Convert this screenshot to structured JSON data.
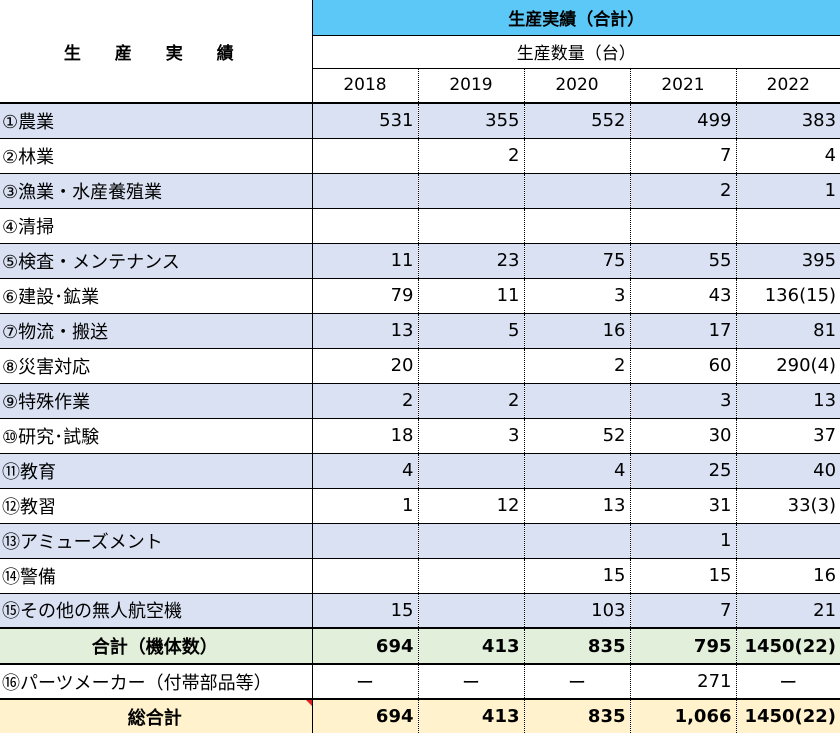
{
  "header": {
    "row_label": "生 産 実 績",
    "band_title": "生産実績（合計）",
    "sub_title": "生産数量（台）",
    "years": [
      "2018",
      "2019",
      "2020",
      "2021",
      "2022"
    ]
  },
  "rows": [
    {
      "label": "①農業",
      "values": [
        "531",
        "355",
        "552",
        "499",
        "383"
      ]
    },
    {
      "label": "②林業",
      "values": [
        "",
        "2",
        "",
        "7",
        "4"
      ]
    },
    {
      "label": "③漁業・水産養殖業",
      "values": [
        "",
        "",
        "",
        "2",
        "1"
      ]
    },
    {
      "label": "④清掃",
      "values": [
        "",
        "",
        "",
        "",
        ""
      ]
    },
    {
      "label": "⑤検査・メンテナンス",
      "values": [
        "11",
        "23",
        "75",
        "55",
        "395"
      ]
    },
    {
      "label": "⑥建設･鉱業",
      "values": [
        "79",
        "11",
        "3",
        "43",
        "136(15)"
      ]
    },
    {
      "label": "⑦物流・搬送",
      "values": [
        "13",
        "5",
        "16",
        "17",
        "81"
      ]
    },
    {
      "label": "⑧災害対応",
      "values": [
        "20",
        "",
        "2",
        "60",
        "290(4)"
      ]
    },
    {
      "label": "⑨特殊作業",
      "values": [
        "2",
        "2",
        "",
        "3",
        "13"
      ]
    },
    {
      "label": "⑩研究･試験",
      "values": [
        "18",
        "3",
        "52",
        "30",
        "37"
      ]
    },
    {
      "label": "⑪教育",
      "values": [
        "4",
        "",
        "4",
        "25",
        "40"
      ]
    },
    {
      "label": "⑫教習",
      "values": [
        "1",
        "12",
        "13",
        "31",
        "33(3)"
      ]
    },
    {
      "label": "⑬アミューズメント",
      "values": [
        "",
        "",
        "",
        "1",
        ""
      ]
    },
    {
      "label": "⑭警備",
      "values": [
        "",
        "",
        "15",
        "15",
        "16"
      ]
    },
    {
      "label": "⑮その他の無人航空機",
      "values": [
        "15",
        "",
        "103",
        "7",
        "21"
      ]
    }
  ],
  "total": {
    "label": "合計（機体数）",
    "values": [
      "694",
      "413",
      "835",
      "795",
      "1450(22)"
    ]
  },
  "parts": {
    "label": "⑯パーツメーカー（付帯部品等）",
    "values": [
      "ー",
      "ー",
      "ー",
      "271",
      "ー"
    ]
  },
  "grand_total": {
    "label": "総合計",
    "values": [
      "694",
      "413",
      "835",
      "1,066",
      "1450(22)"
    ]
  },
  "colors": {
    "band": "#5bc8f7",
    "shaded_row": "#d9e1f2",
    "total_row": "#e2efda",
    "grand_total_row": "#fff2cc"
  }
}
